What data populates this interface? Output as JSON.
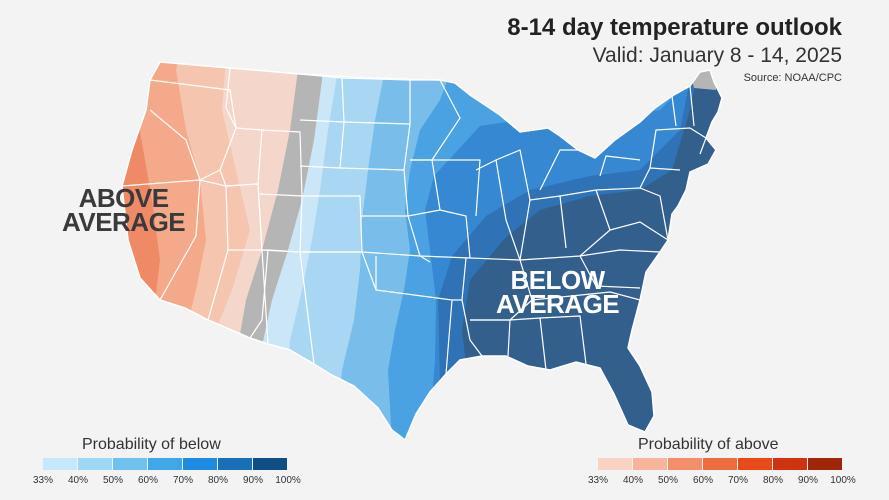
{
  "header": {
    "title": "8-14 day temperature outlook",
    "subtitle": "Valid: January 8 - 14, 2025",
    "source": "Source: NOAA/CPC"
  },
  "map": {
    "labels": {
      "above": [
        "ABOVE",
        "AVERAGE"
      ],
      "below": [
        "BELOW",
        "AVERAGE"
      ]
    },
    "zone_colors": {
      "above_60": "#ef8a66",
      "above_50": "#f3a98a",
      "above_40": "#f6c5b0",
      "above_33": "#f5d6ca",
      "near_normal": "#b5b5b5",
      "below_33": "#cbe6f7",
      "below_40": "#a9d7f3",
      "below_50": "#79bdeb",
      "below_60": "#4aa2e3",
      "below_70": "#3588d1",
      "below_80": "#2f72b5",
      "below_90": "#335f8d",
      "outline": "#ffffff"
    }
  },
  "legend_below": {
    "title": "Probability of below",
    "ticks": [
      "33%",
      "40%",
      "50%",
      "60%",
      "70%",
      "80%",
      "90%",
      "100%"
    ],
    "colors": [
      "#c6e8fb",
      "#9fd8f6",
      "#6ec2f0",
      "#40a8e8",
      "#1e8ae0",
      "#1a6fb9",
      "#0f4f86"
    ]
  },
  "legend_above": {
    "title": "Probability of above",
    "ticks": [
      "33%",
      "40%",
      "50%",
      "60%",
      "70%",
      "80%",
      "90%",
      "100%"
    ],
    "colors": [
      "#f9d2c3",
      "#f6b49c",
      "#f38e6c",
      "#f06a40",
      "#ea4a1b",
      "#d0330f",
      "#a12508"
    ]
  }
}
